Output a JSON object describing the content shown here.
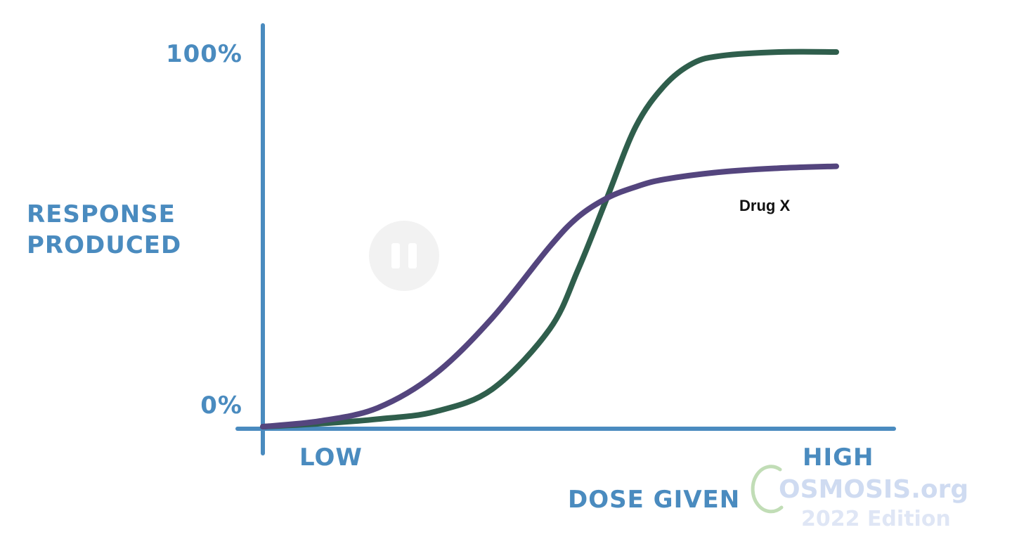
{
  "chart_data": {
    "type": "line",
    "x_axis": {
      "label": "DOSE GIVEN",
      "start_label": "LOW",
      "end_label": "HIGH",
      "range": [
        0,
        1
      ]
    },
    "y_axis": {
      "label_lines": [
        "RESPONSE",
        "PRODUCED"
      ],
      "ticks": [
        "100%",
        "0%"
      ],
      "ylim": [
        0,
        100
      ]
    },
    "grid": false,
    "series": [
      {
        "color": "#2f5e4c",
        "x": [
          0,
          0.1,
          0.2,
          0.3,
          0.4,
          0.5,
          0.55,
          0.6,
          0.65,
          0.7,
          0.75,
          0.8,
          0.9,
          1.0
        ],
        "y": [
          0,
          0.8,
          2,
          4,
          10,
          26,
          42,
          61,
          80,
          91,
          97,
          99,
          100,
          100
        ]
      },
      {
        "name": "Drug X",
        "color": "#54457e",
        "x": [
          0,
          0.1,
          0.2,
          0.3,
          0.4,
          0.5,
          0.55,
          0.6,
          0.65,
          0.7,
          0.8,
          0.9,
          1.0
        ],
        "y": [
          0,
          1.5,
          5,
          14,
          29,
          48,
          56,
          61,
          64,
          66,
          68,
          69,
          69.5
        ]
      }
    ],
    "annotations": [
      "Drug X"
    ]
  },
  "watermark": {
    "brand": "OSMOSIS.org",
    "edition": "2022 Edition",
    "icon": "pause-icon"
  },
  "colors": {
    "axis": "#4a8bbf"
  }
}
